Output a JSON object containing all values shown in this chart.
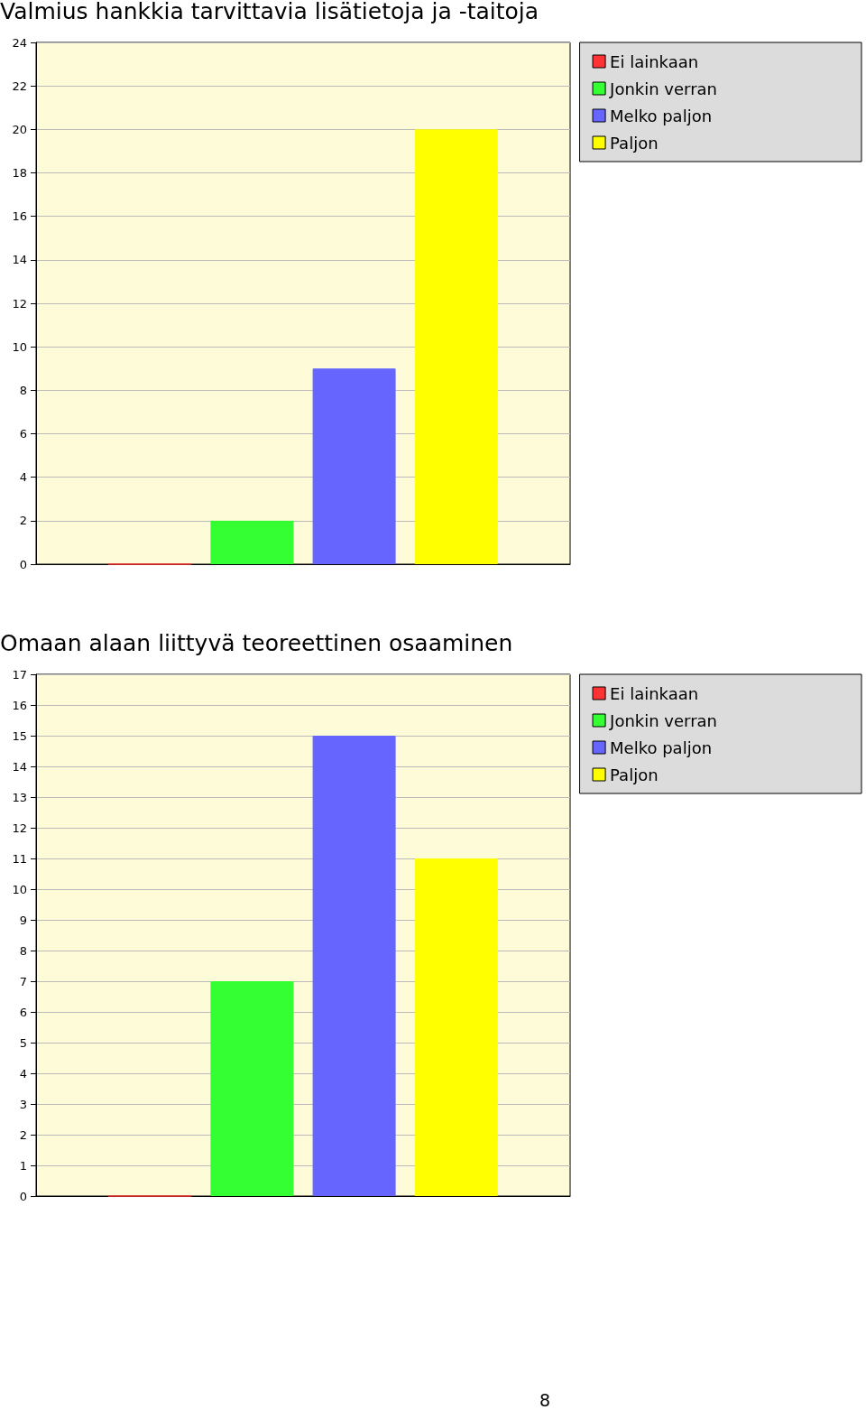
{
  "chart_data": [
    {
      "type": "bar",
      "title": "Valmius hankkia tarvittavia lisätietoja ja -taitoja",
      "categories": [
        null
      ],
      "series": [
        {
          "name": "Ei lainkaan",
          "color": "#ff3333",
          "values": [
            0
          ]
        },
        {
          "name": "Jonkin verran",
          "color": "#33ff33",
          "values": [
            2
          ]
        },
        {
          "name": "Melko paljon",
          "color": "#6666ff",
          "values": [
            9
          ]
        },
        {
          "name": "Paljon",
          "color": "#ffff00",
          "values": [
            20
          ]
        }
      ],
      "ylim": [
        0,
        24
      ],
      "yticks": [
        0,
        2,
        4,
        6,
        8,
        10,
        12,
        14,
        16,
        18,
        20,
        22,
        24
      ],
      "grid": "y",
      "legend": "top right"
    },
    {
      "type": "bar",
      "title": "Omaan alaan liittyvä teoreettinen osaaminen",
      "categories": [
        null
      ],
      "series": [
        {
          "name": "Ei lainkaan",
          "color": "#ff3333",
          "values": [
            0
          ]
        },
        {
          "name": "Jonkin verran",
          "color": "#33ff33",
          "values": [
            7
          ]
        },
        {
          "name": "Melko paljon",
          "color": "#6666ff",
          "values": [
            15
          ]
        },
        {
          "name": "Paljon",
          "color": "#ffff00",
          "values": [
            11
          ]
        }
      ],
      "ylim": [
        0,
        17
      ],
      "yticks": [
        0,
        1,
        2,
        3,
        4,
        5,
        6,
        7,
        8,
        9,
        10,
        11,
        12,
        13,
        14,
        15,
        16,
        17
      ],
      "grid": "y",
      "legend": "top right",
      "annotations": [
        "8"
      ]
    }
  ]
}
